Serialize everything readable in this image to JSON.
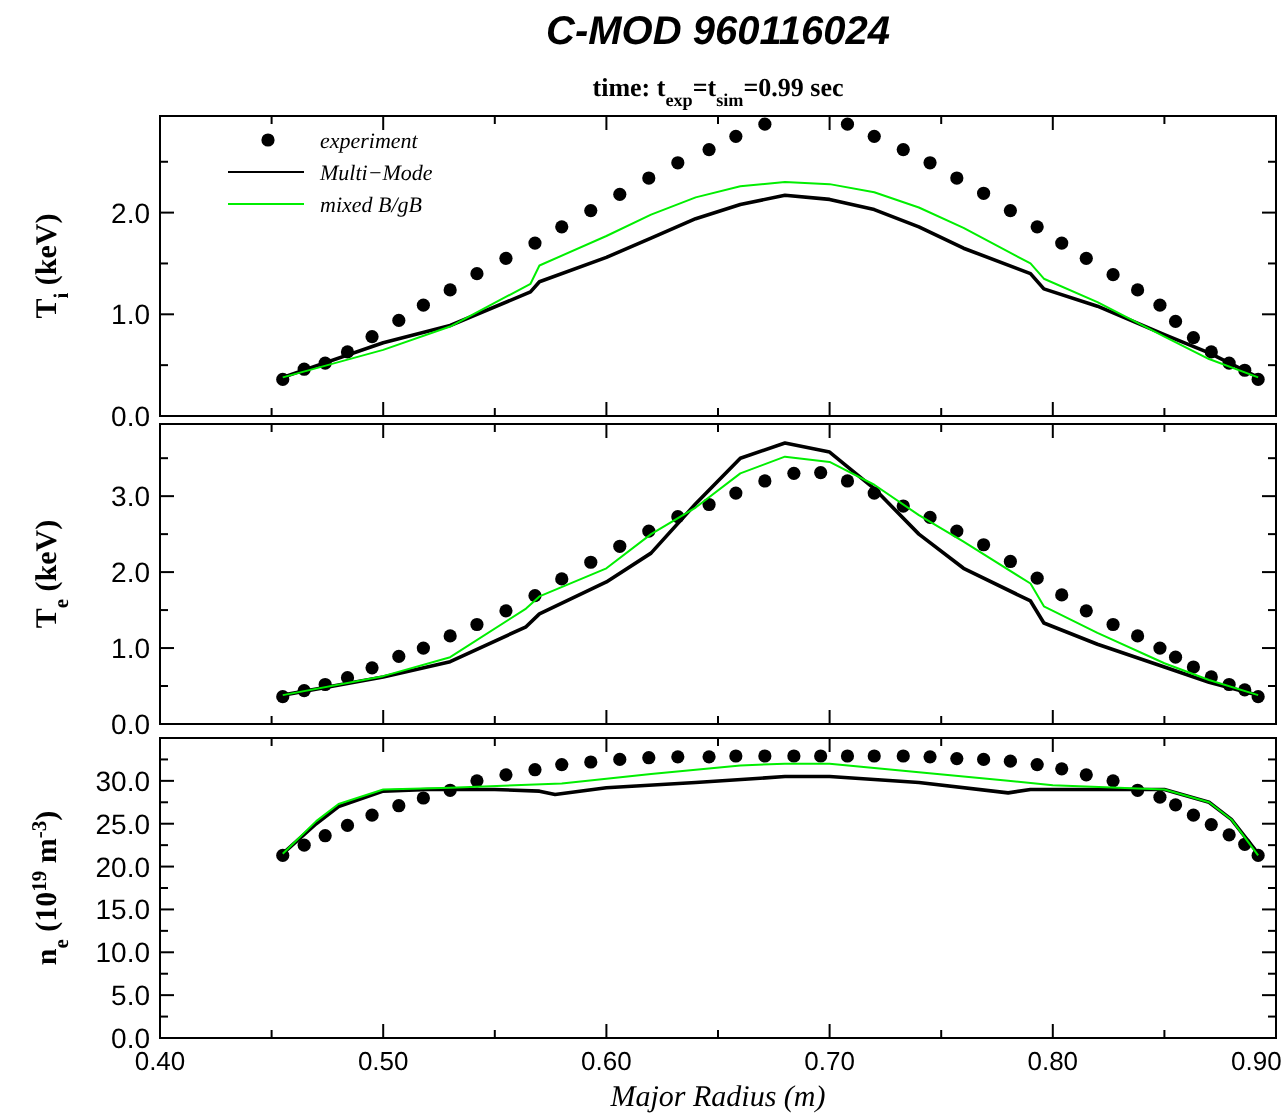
{
  "chart_data": [
    {
      "type": "line",
      "title": "C-MOD 960116024",
      "subtitle": "time: t$_{exp}$=t$_{sim}$=0.99 sec",
      "ylabel": "T$_{i}$ (keV)",
      "xlim": [
        0.4,
        0.9
      ],
      "ylim": [
        0,
        2.95
      ],
      "tick_labels": "y",
      "legend": "top left",
      "grid": false,
      "yticks": [
        {
          "value": 0,
          "label": "0.0"
        },
        {
          "value": 0.5,
          "label": null
        },
        {
          "value": 1,
          "label": "1.0"
        },
        {
          "value": 1.5,
          "label": null
        },
        {
          "value": 2,
          "label": "2.0"
        },
        {
          "value": 2.5,
          "label": null
        }
      ],
      "series": [
        {
          "name": "experiment",
          "type": "scatter",
          "marker": "circle",
          "color": "#000000",
          "x": [
            0.455,
            0.4646,
            0.474,
            0.484,
            0.495,
            0.507,
            0.518,
            0.53,
            0.542,
            0.555,
            0.568,
            0.58,
            0.593,
            0.606,
            0.619,
            0.632,
            0.646,
            0.658,
            0.671,
            0.708,
            0.72,
            0.733,
            0.745,
            0.757,
            0.769,
            0.781,
            0.793,
            0.804,
            0.815,
            0.827,
            0.838,
            0.848,
            0.855,
            0.863,
            0.871,
            0.879,
            0.886,
            0.892
          ],
          "values": [
            0.36,
            0.46,
            0.52,
            0.63,
            0.78,
            0.94,
            1.09,
            1.24,
            1.4,
            1.55,
            1.7,
            1.86,
            2.02,
            2.18,
            2.34,
            2.49,
            2.62,
            2.75,
            2.87,
            2.87,
            2.75,
            2.62,
            2.49,
            2.34,
            2.19,
            2.02,
            1.86,
            1.7,
            1.55,
            1.39,
            1.24,
            1.09,
            0.93,
            0.77,
            0.63,
            0.52,
            0.45,
            0.36
          ]
        },
        {
          "name": "Multi−Mode",
          "type": "line",
          "marker": "none",
          "line_style": "solid",
          "color": "#000000",
          "x": [
            0.455,
            0.5,
            0.53,
            0.566,
            0.57,
            0.6,
            0.62,
            0.64,
            0.66,
            0.68,
            0.7,
            0.72,
            0.74,
            0.76,
            0.79,
            0.796,
            0.82,
            0.85,
            0.87,
            0.892
          ],
          "values": [
            0.38,
            0.72,
            0.89,
            1.22,
            1.32,
            1.56,
            1.75,
            1.94,
            2.08,
            2.17,
            2.13,
            2.03,
            1.86,
            1.65,
            1.4,
            1.25,
            1.08,
            0.8,
            0.62,
            0.38
          ]
        },
        {
          "name": "mixed B/gB",
          "type": "line",
          "marker": "none",
          "line_style": "solid",
          "color": "#00ee00",
          "x": [
            0.455,
            0.5,
            0.53,
            0.566,
            0.57,
            0.6,
            0.62,
            0.64,
            0.66,
            0.68,
            0.7,
            0.72,
            0.74,
            0.76,
            0.79,
            0.796,
            0.82,
            0.85,
            0.87,
            0.892
          ],
          "values": [
            0.38,
            0.65,
            0.88,
            1.3,
            1.48,
            1.77,
            1.98,
            2.15,
            2.26,
            2.3,
            2.28,
            2.2,
            2.05,
            1.85,
            1.5,
            1.35,
            1.12,
            0.78,
            0.56,
            0.38
          ]
        }
      ]
    },
    {
      "type": "line",
      "ylabel": "T$_{e}$ (keV)",
      "xlim": [
        0.4,
        0.9
      ],
      "ylim": [
        0,
        3.95
      ],
      "tick_labels": "y",
      "legend": false,
      "grid": false,
      "yticks": [
        {
          "value": 0,
          "label": "0.0"
        },
        {
          "value": 0.5,
          "label": null
        },
        {
          "value": 1,
          "label": "1.0"
        },
        {
          "value": 1.5,
          "label": null
        },
        {
          "value": 2,
          "label": "2.0"
        },
        {
          "value": 2.5,
          "label": null
        },
        {
          "value": 3,
          "label": "3.0"
        },
        {
          "value": 3.5,
          "label": null
        }
      ],
      "series": [
        {
          "type": "scatter",
          "marker": "circle",
          "color": "#000000",
          "x": [
            0.455,
            0.4646,
            0.474,
            0.484,
            0.495,
            0.507,
            0.518,
            0.53,
            0.542,
            0.555,
            0.568,
            0.58,
            0.593,
            0.606,
            0.619,
            0.632,
            0.646,
            0.658,
            0.671,
            0.684,
            0.696,
            0.708,
            0.72,
            0.733,
            0.745,
            0.757,
            0.769,
            0.781,
            0.793,
            0.804,
            0.815,
            0.827,
            0.838,
            0.848,
            0.855,
            0.863,
            0.871,
            0.879,
            0.886,
            0.892
          ],
          "values": [
            0.36,
            0.44,
            0.52,
            0.61,
            0.74,
            0.89,
            1.0,
            1.16,
            1.31,
            1.49,
            1.69,
            1.91,
            2.13,
            2.34,
            2.54,
            2.73,
            2.89,
            3.04,
            3.2,
            3.3,
            3.31,
            3.2,
            3.04,
            2.87,
            2.72,
            2.54,
            2.36,
            2.14,
            1.92,
            1.7,
            1.49,
            1.31,
            1.16,
            1.0,
            0.88,
            0.75,
            0.62,
            0.52,
            0.45,
            0.36
          ]
        },
        {
          "type": "line",
          "marker": "none",
          "line_style": "solid",
          "color": "#000000",
          "x": [
            0.455,
            0.5,
            0.53,
            0.564,
            0.57,
            0.6,
            0.62,
            0.64,
            0.66,
            0.68,
            0.7,
            0.72,
            0.74,
            0.76,
            0.79,
            0.796,
            0.82,
            0.85,
            0.87,
            0.892
          ],
          "values": [
            0.38,
            0.62,
            0.82,
            1.28,
            1.45,
            1.87,
            2.25,
            2.9,
            3.5,
            3.7,
            3.58,
            3.1,
            2.5,
            2.05,
            1.62,
            1.33,
            1.05,
            0.75,
            0.55,
            0.38
          ]
        },
        {
          "type": "line",
          "marker": "none",
          "line_style": "solid",
          "color": "#00ee00",
          "x": [
            0.455,
            0.5,
            0.53,
            0.564,
            0.57,
            0.6,
            0.62,
            0.64,
            0.66,
            0.68,
            0.7,
            0.72,
            0.74,
            0.76,
            0.79,
            0.796,
            0.82,
            0.85,
            0.87,
            0.892
          ],
          "values": [
            0.38,
            0.63,
            0.88,
            1.52,
            1.68,
            2.05,
            2.5,
            2.85,
            3.3,
            3.52,
            3.45,
            3.15,
            2.75,
            2.4,
            1.85,
            1.55,
            1.2,
            0.8,
            0.58,
            0.38
          ]
        }
      ]
    },
    {
      "type": "line",
      "xlabel": "Major Radius (m)",
      "ylabel": "n$_{e}$ (10$^{19}$ m$^{-3}$)",
      "xlim": [
        0.4,
        0.9
      ],
      "ylim": [
        0,
        35
      ],
      "legend": false,
      "grid": false,
      "xticks": [
        {
          "value": 0.4,
          "label": "0.40"
        },
        {
          "value": 0.45,
          "label": null
        },
        {
          "value": 0.5,
          "label": "0.50"
        },
        {
          "value": 0.55,
          "label": null
        },
        {
          "value": 0.6,
          "label": "0.60"
        },
        {
          "value": 0.65,
          "label": null
        },
        {
          "value": 0.7,
          "label": "0.70"
        },
        {
          "value": 0.75,
          "label": null
        },
        {
          "value": 0.8,
          "label": "0.80"
        },
        {
          "value": 0.85,
          "label": null
        },
        {
          "value": 0.9,
          "label": "0.90"
        }
      ],
      "yticks": [
        {
          "value": 0,
          "label": "0.0"
        },
        {
          "value": 2.5,
          "label": null
        },
        {
          "value": 5,
          "label": "5.0"
        },
        {
          "value": 7.5,
          "label": null
        },
        {
          "value": 10,
          "label": "10.0"
        },
        {
          "value": 12.5,
          "label": null
        },
        {
          "value": 15,
          "label": "15.0"
        },
        {
          "value": 17.5,
          "label": null
        },
        {
          "value": 20,
          "label": "20.0"
        },
        {
          "value": 22.5,
          "label": null
        },
        {
          "value": 25,
          "label": "25.0"
        },
        {
          "value": 27.5,
          "label": null
        },
        {
          "value": 30,
          "label": "30.0"
        },
        {
          "value": 32.5,
          "label": null
        }
      ],
      "series": [
        {
          "type": "scatter",
          "marker": "circle",
          "color": "#000000",
          "x": [
            0.455,
            0.4646,
            0.474,
            0.484,
            0.495,
            0.507,
            0.518,
            0.53,
            0.542,
            0.555,
            0.568,
            0.58,
            0.593,
            0.606,
            0.619,
            0.632,
            0.646,
            0.658,
            0.671,
            0.684,
            0.696,
            0.708,
            0.72,
            0.733,
            0.745,
            0.757,
            0.769,
            0.781,
            0.793,
            0.804,
            0.815,
            0.827,
            0.838,
            0.848,
            0.855,
            0.863,
            0.871,
            0.879,
            0.886,
            0.892
          ],
          "values": [
            21.3,
            22.5,
            23.6,
            24.8,
            26.0,
            27.1,
            28.0,
            28.9,
            30.0,
            30.7,
            31.3,
            31.9,
            32.2,
            32.5,
            32.7,
            32.8,
            32.8,
            32.9,
            32.9,
            32.9,
            32.9,
            32.9,
            32.9,
            32.9,
            32.8,
            32.6,
            32.5,
            32.3,
            31.9,
            31.4,
            30.7,
            30.0,
            28.9,
            28.1,
            27.2,
            26.0,
            24.9,
            23.7,
            22.6,
            21.3
          ]
        },
        {
          "type": "line",
          "marker": "none",
          "line_style": "solid",
          "color": "#000000",
          "x": [
            0.455,
            0.47,
            0.48,
            0.5,
            0.52,
            0.55,
            0.57,
            0.577,
            0.6,
            0.64,
            0.68,
            0.7,
            0.74,
            0.78,
            0.79,
            0.85,
            0.87,
            0.88,
            0.892
          ],
          "values": [
            21.5,
            25.0,
            27.0,
            28.8,
            29.0,
            29.0,
            28.8,
            28.4,
            29.2,
            29.8,
            30.5,
            30.5,
            29.8,
            28.6,
            29.0,
            29.0,
            27.5,
            25.5,
            21.5
          ]
        },
        {
          "type": "line",
          "marker": "none",
          "line_style": "solid",
          "color": "#00ee00",
          "x": [
            0.455,
            0.47,
            0.48,
            0.5,
            0.53,
            0.58,
            0.62,
            0.66,
            0.68,
            0.7,
            0.74,
            0.78,
            0.8,
            0.85,
            0.87,
            0.88,
            0.892
          ],
          "values": [
            21.5,
            25.3,
            27.3,
            29.0,
            29.2,
            29.7,
            30.8,
            31.8,
            32.0,
            32.0,
            31.0,
            30.0,
            29.5,
            29.0,
            27.5,
            25.5,
            21.3
          ]
        }
      ]
    }
  ]
}
